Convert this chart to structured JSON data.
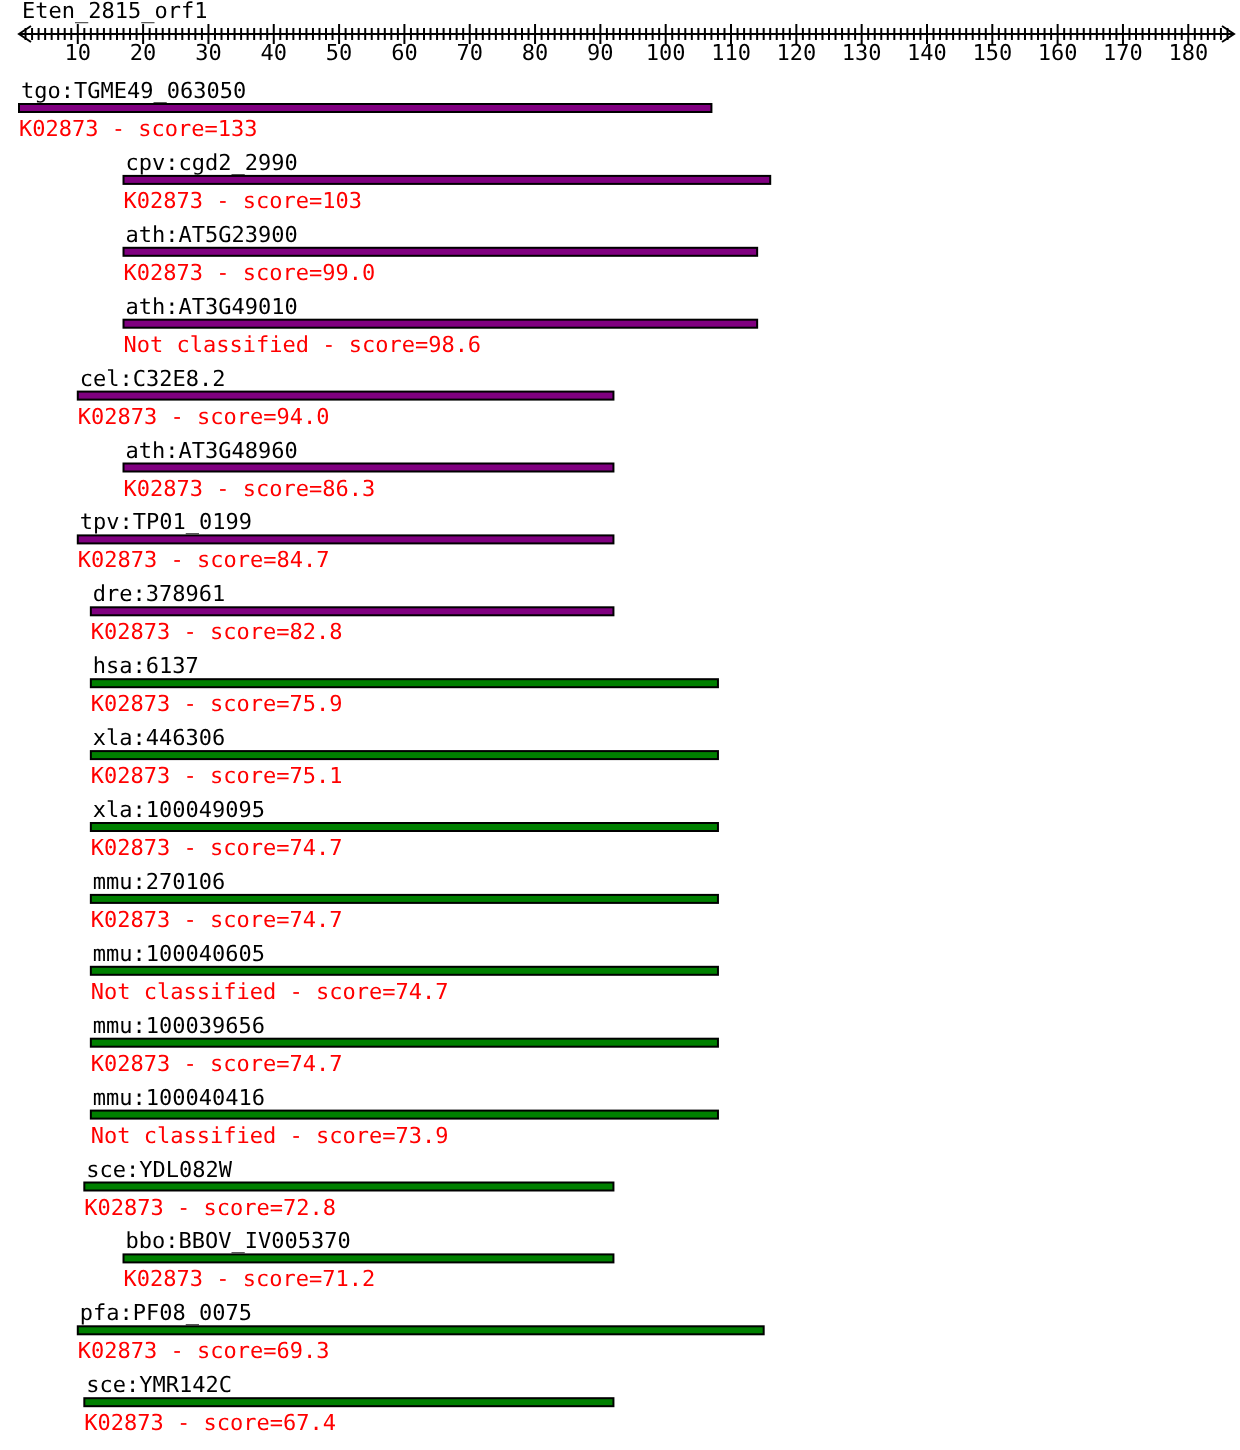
{
  "chart_data": {
    "type": "bar",
    "orientation": "horizontal",
    "title": "Eten_2815_orf1",
    "categories": [
      "tgo:TGME49_063050",
      "cpv:cgd2_2990",
      "ath:AT5G23900",
      "ath:AT3G49010",
      "cel:C32E8.2",
      "ath:AT3G48960",
      "tpv:TP01_0199",
      "dre:378961",
      "hsa:6137",
      "xla:446306",
      "xla:100049095",
      "mmu:270106",
      "mmu:100040605",
      "mmu:100039656",
      "mmu:100040416",
      "sce:YDL082W",
      "bbo:BBOV_IV005370",
      "pfa:PF08_0075",
      "sce:YMR142C"
    ],
    "base": [
      1,
      17,
      17,
      17,
      10,
      17,
      10,
      12,
      12,
      12,
      12,
      12,
      12,
      12,
      12,
      11,
      17,
      10,
      11
    ],
    "values": [
      106,
      99,
      97,
      97,
      82,
      75,
      82,
      80,
      96,
      96,
      96,
      96,
      96,
      96,
      96,
      81,
      75,
      105,
      81
    ],
    "colors": [
      "#800080",
      "#800080",
      "#800080",
      "#800080",
      "#800080",
      "#800080",
      "#800080",
      "#800080",
      "#008000",
      "#008000",
      "#008000",
      "#008000",
      "#008000",
      "#008000",
      "#008000",
      "#008000",
      "#008000",
      "#008000",
      "#008000"
    ],
    "annotations": [
      "K02873 - score=133",
      "K02873 - score=103",
      "K02873 - score=99.0",
      "Not classified - score=98.6",
      "K02873 - score=94.0",
      "K02873 - score=86.3",
      "K02873 - score=84.7",
      "K02873 - score=82.8",
      "K02873 - score=75.9",
      "K02873 - score=75.1",
      "K02873 - score=74.7",
      "K02873 - score=74.7",
      "Not classified - score=74.7",
      "K02873 - score=74.7",
      "Not classified - score=73.9",
      "K02873 - score=72.8",
      "K02873 - score=71.2",
      "K02873 - score=69.3",
      "K02873 - score=67.4"
    ],
    "xlim": [
      1,
      187
    ],
    "xticks": [
      {
        "value": 2,
        "label": null
      },
      {
        "value": 3,
        "label": null
      },
      {
        "value": 4,
        "label": null
      },
      {
        "value": 5,
        "label": null
      },
      {
        "value": 6,
        "label": null
      },
      {
        "value": 7,
        "label": null
      },
      {
        "value": 8,
        "label": null
      },
      {
        "value": 9,
        "label": null
      },
      10,
      {
        "value": 11,
        "label": null
      },
      {
        "value": 12,
        "label": null
      },
      {
        "value": 13,
        "label": null
      },
      {
        "value": 14,
        "label": null
      },
      {
        "value": 15,
        "label": null
      },
      {
        "value": 16,
        "label": null
      },
      {
        "value": 17,
        "label": null
      },
      {
        "value": 18,
        "label": null
      },
      {
        "value": 19,
        "label": null
      },
      20,
      {
        "value": 21,
        "label": null
      },
      {
        "value": 22,
        "label": null
      },
      {
        "value": 23,
        "label": null
      },
      {
        "value": 24,
        "label": null
      },
      {
        "value": 25,
        "label": null
      },
      {
        "value": 26,
        "label": null
      },
      {
        "value": 27,
        "label": null
      },
      {
        "value": 28,
        "label": null
      },
      {
        "value": 29,
        "label": null
      },
      30,
      {
        "value": 31,
        "label": null
      },
      {
        "value": 32,
        "label": null
      },
      {
        "value": 33,
        "label": null
      },
      {
        "value": 34,
        "label": null
      },
      {
        "value": 35,
        "label": null
      },
      {
        "value": 36,
        "label": null
      },
      {
        "value": 37,
        "label": null
      },
      {
        "value": 38,
        "label": null
      },
      {
        "value": 39,
        "label": null
      },
      40,
      {
        "value": 41,
        "label": null
      },
      {
        "value": 42,
        "label": null
      },
      {
        "value": 43,
        "label": null
      },
      {
        "value": 44,
        "label": null
      },
      {
        "value": 45,
        "label": null
      },
      {
        "value": 46,
        "label": null
      },
      {
        "value": 47,
        "label": null
      },
      {
        "value": 48,
        "label": null
      },
      {
        "value": 49,
        "label": null
      },
      50,
      {
        "value": 51,
        "label": null
      },
      {
        "value": 52,
        "label": null
      },
      {
        "value": 53,
        "label": null
      },
      {
        "value": 54,
        "label": null
      },
      {
        "value": 55,
        "label": null
      },
      {
        "value": 56,
        "label": null
      },
      {
        "value": 57,
        "label": null
      },
      {
        "value": 58,
        "label": null
      },
      {
        "value": 59,
        "label": null
      },
      60,
      {
        "value": 61,
        "label": null
      },
      {
        "value": 62,
        "label": null
      },
      {
        "value": 63,
        "label": null
      },
      {
        "value": 64,
        "label": null
      },
      {
        "value": 65,
        "label": null
      },
      {
        "value": 66,
        "label": null
      },
      {
        "value": 67,
        "label": null
      },
      {
        "value": 68,
        "label": null
      },
      {
        "value": 69,
        "label": null
      },
      70,
      {
        "value": 71,
        "label": null
      },
      {
        "value": 72,
        "label": null
      },
      {
        "value": 73,
        "label": null
      },
      {
        "value": 74,
        "label": null
      },
      {
        "value": 75,
        "label": null
      },
      {
        "value": 76,
        "label": null
      },
      {
        "value": 77,
        "label": null
      },
      {
        "value": 78,
        "label": null
      },
      {
        "value": 79,
        "label": null
      },
      80,
      {
        "value": 81,
        "label": null
      },
      {
        "value": 82,
        "label": null
      },
      {
        "value": 83,
        "label": null
      },
      {
        "value": 84,
        "label": null
      },
      {
        "value": 85,
        "label": null
      },
      {
        "value": 86,
        "label": null
      },
      {
        "value": 87,
        "label": null
      },
      {
        "value": 88,
        "label": null
      },
      {
        "value": 89,
        "label": null
      },
      90,
      {
        "value": 91,
        "label": null
      },
      {
        "value": 92,
        "label": null
      },
      {
        "value": 93,
        "label": null
      },
      {
        "value": 94,
        "label": null
      },
      {
        "value": 95,
        "label": null
      },
      {
        "value": 96,
        "label": null
      },
      {
        "value": 97,
        "label": null
      },
      {
        "value": 98,
        "label": null
      },
      {
        "value": 99,
        "label": null
      },
      100,
      {
        "value": 101,
        "label": null
      },
      {
        "value": 102,
        "label": null
      },
      {
        "value": 103,
        "label": null
      },
      {
        "value": 104,
        "label": null
      },
      {
        "value": 105,
        "label": null
      },
      {
        "value": 106,
        "label": null
      },
      {
        "value": 107,
        "label": null
      },
      {
        "value": 108,
        "label": null
      },
      {
        "value": 109,
        "label": null
      },
      110,
      {
        "value": 111,
        "label": null
      },
      {
        "value": 112,
        "label": null
      },
      {
        "value": 113,
        "label": null
      },
      {
        "value": 114,
        "label": null
      },
      {
        "value": 115,
        "label": null
      },
      {
        "value": 116,
        "label": null
      },
      {
        "value": 117,
        "label": null
      },
      {
        "value": 118,
        "label": null
      },
      {
        "value": 119,
        "label": null
      },
      120,
      {
        "value": 121,
        "label": null
      },
      {
        "value": 122,
        "label": null
      },
      {
        "value": 123,
        "label": null
      },
      {
        "value": 124,
        "label": null
      },
      {
        "value": 125,
        "label": null
      },
      {
        "value": 126,
        "label": null
      },
      {
        "value": 127,
        "label": null
      },
      {
        "value": 128,
        "label": null
      },
      {
        "value": 129,
        "label": null
      },
      130,
      {
        "value": 131,
        "label": null
      },
      {
        "value": 132,
        "label": null
      },
      {
        "value": 133,
        "label": null
      },
      {
        "value": 134,
        "label": null
      },
      {
        "value": 135,
        "label": null
      },
      {
        "value": 136,
        "label": null
      },
      {
        "value": 137,
        "label": null
      },
      {
        "value": 138,
        "label": null
      },
      {
        "value": 139,
        "label": null
      },
      140,
      {
        "value": 141,
        "label": null
      },
      {
        "value": 142,
        "label": null
      },
      {
        "value": 143,
        "label": null
      },
      {
        "value": 144,
        "label": null
      },
      {
        "value": 145,
        "label": null
      },
      {
        "value": 146,
        "label": null
      },
      {
        "value": 147,
        "label": null
      },
      {
        "value": 148,
        "label": null
      },
      {
        "value": 149,
        "label": null
      },
      150,
      {
        "value": 151,
        "label": null
      },
      {
        "value": 152,
        "label": null
      },
      {
        "value": 153,
        "label": null
      },
      {
        "value": 154,
        "label": null
      },
      {
        "value": 155,
        "label": null
      },
      {
        "value": 156,
        "label": null
      },
      {
        "value": 157,
        "label": null
      },
      {
        "value": 158,
        "label": null
      },
      {
        "value": 159,
        "label": null
      },
      160,
      {
        "value": 161,
        "label": null
      },
      {
        "value": 162,
        "label": null
      },
      {
        "value": 163,
        "label": null
      },
      {
        "value": 164,
        "label": null
      },
      {
        "value": 165,
        "label": null
      },
      {
        "value": 166,
        "label": null
      },
      {
        "value": 167,
        "label": null
      },
      {
        "value": 168,
        "label": null
      },
      {
        "value": 169,
        "label": null
      },
      170,
      {
        "value": 171,
        "label": null
      },
      {
        "value": 172,
        "label": null
      },
      {
        "value": 173,
        "label": null
      },
      {
        "value": 174,
        "label": null
      },
      {
        "value": 175,
        "label": null
      },
      {
        "value": 176,
        "label": null
      },
      {
        "value": 177,
        "label": null
      },
      {
        "value": 178,
        "label": null
      },
      {
        "value": 179,
        "label": null
      },
      180,
      {
        "value": 181,
        "label": null
      },
      {
        "value": 182,
        "label": null
      },
      {
        "value": 183,
        "label": null
      },
      {
        "value": 184,
        "label": null
      },
      {
        "value": 185,
        "label": null
      },
      {
        "value": 186,
        "label": null
      }
    ]
  }
}
